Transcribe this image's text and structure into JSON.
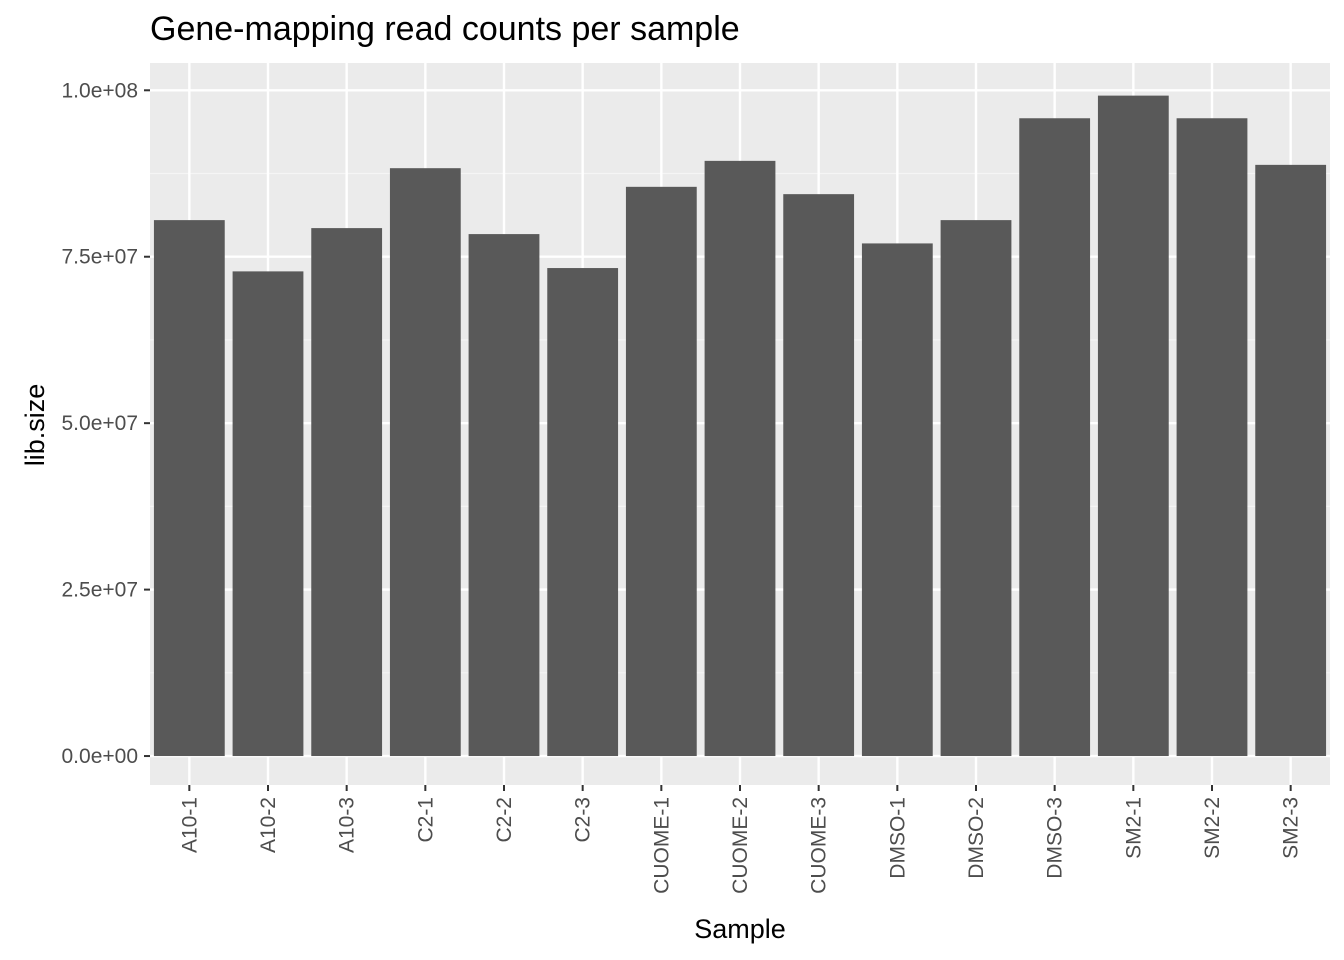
{
  "chart_data": {
    "type": "bar",
    "title": "Gene-mapping read counts per sample",
    "xlabel": "Sample",
    "ylabel": "lib.size",
    "categories": [
      "A10-1",
      "A10-2",
      "A10-3",
      "C2-1",
      "C2-2",
      "C2-3",
      "CUOME-1",
      "CUOME-2",
      "CUOME-3",
      "DMSO-1",
      "DMSO-2",
      "DMSO-3",
      "SM2-1",
      "SM2-2",
      "SM2-3"
    ],
    "values": [
      80500000,
      72800000,
      79300000,
      88300000,
      78400000,
      73300000,
      85500000,
      89400000,
      84400000,
      77000000,
      80500000,
      95800000,
      99200000,
      95800000,
      88800000
    ],
    "ylim": [
      -4350000,
      104100000
    ],
    "y_ticks": [
      0,
      25000000,
      50000000,
      75000000,
      100000000
    ],
    "y_tick_labels": [
      "0.0e+00",
      "2.5e+07",
      "5.0e+07",
      "7.5e+07",
      "1.0e+08"
    ],
    "grid": true,
    "legend": "none",
    "colors": {
      "bar": "#595959",
      "panel": "#ebebeb",
      "grid_major": "#ffffff",
      "grid_minor": "#f5f5f5",
      "tick_text": "#4d4d4d",
      "tick_mark": "#333333"
    }
  }
}
